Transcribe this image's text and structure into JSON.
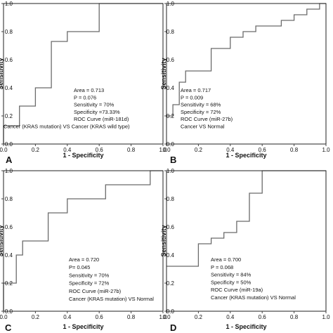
{
  "colors": {
    "curve": "#6b6b6b",
    "frame": "#222222",
    "tick_marks": "#444444",
    "background": "#ffffff"
  },
  "chart_data": [
    {
      "type": "line",
      "panel_label": "A",
      "xlabel": "1 - Specificity",
      "ylabel": "Sensitivity",
      "xlim": [
        0,
        1.0
      ],
      "ylim": [
        0,
        1.0
      ],
      "x_ticks": [
        "0.0",
        "0.2",
        "0.4",
        "0.6",
        "0.8",
        "1.0"
      ],
      "y_ticks": [
        "0.0",
        "0.2",
        "0.4",
        "0.6",
        "0.8",
        "1.0"
      ],
      "grid": false,
      "series": [
        {
          "x": [
            0,
            0,
            0.1,
            0.1,
            0.2,
            0.2,
            0.3,
            0.3,
            0.4,
            0.4,
            0.6,
            0.6,
            1.0
          ],
          "y": [
            0,
            0.13,
            0.13,
            0.27,
            0.27,
            0.4,
            0.4,
            0.73,
            0.73,
            0.8,
            0.8,
            1.0,
            1.0
          ]
        }
      ],
      "annotations": [
        "Area = 0.713",
        "P = 0.076",
        "Sensitivity = 70%",
        "Specificity =73.33%",
        "ROC Curve (miR-181d)",
        "Cancer (KRAS mutation) VS Cancer (KRAS wild type)"
      ]
    },
    {
      "type": "line",
      "panel_label": "B",
      "xlabel": "1 - Specificity",
      "ylabel": "Sensitivity",
      "xlim": [
        0,
        1.0
      ],
      "ylim": [
        0,
        1.0
      ],
      "x_ticks": [
        "0.0",
        "0.2",
        "0.4",
        "0.6",
        "0.8",
        "1.0"
      ],
      "y_ticks": [
        "0.0",
        "0.2",
        "0.4",
        "0.6",
        "0.8",
        "1.0"
      ],
      "grid": false,
      "series": [
        {
          "x": [
            0,
            0.04,
            0.04,
            0.08,
            0.08,
            0.12,
            0.12,
            0.28,
            0.28,
            0.4,
            0.4,
            0.48,
            0.48,
            0.56,
            0.56,
            0.72,
            0.72,
            0.8,
            0.8,
            0.88,
            0.88,
            0.96,
            0.96,
            1.0
          ],
          "y": [
            0.2,
            0.2,
            0.28,
            0.28,
            0.44,
            0.44,
            0.52,
            0.52,
            0.68,
            0.68,
            0.76,
            0.76,
            0.8,
            0.8,
            0.84,
            0.84,
            0.88,
            0.88,
            0.92,
            0.92,
            0.96,
            0.96,
            1.0,
            1.0
          ]
        }
      ],
      "annotations": [
        "Area = 0.717",
        "P = 0.009",
        "Sensitivity = 68%",
        "Specificity = 72%",
        "ROC Curve (miR-27b)",
        "Cancer VS Normal"
      ]
    },
    {
      "type": "line",
      "panel_label": "C",
      "xlabel": "1 - Specificity",
      "ylabel": "Sensitivity",
      "xlim": [
        0,
        1.0
      ],
      "ylim": [
        0,
        1.0
      ],
      "x_ticks": [
        "0.0",
        "0.2",
        "0.4",
        "0.6",
        "0.8",
        "1.0"
      ],
      "y_ticks": [
        "0.0",
        "0.2",
        "0.4",
        "0.6",
        "0.8",
        "1.0"
      ],
      "grid": false,
      "series": [
        {
          "x": [
            0,
            0,
            0.08,
            0.08,
            0.12,
            0.12,
            0.28,
            0.28,
            0.4,
            0.4,
            0.64,
            0.64,
            0.92,
            0.92,
            1.0
          ],
          "y": [
            0,
            0.2,
            0.2,
            0.4,
            0.4,
            0.5,
            0.5,
            0.7,
            0.7,
            0.8,
            0.8,
            0.9,
            0.9,
            1.0,
            1.0
          ]
        }
      ],
      "annotations": [
        "Area = 0.720",
        "P= 0.045",
        "Sensitivity = 70%",
        "Specificity = 72%",
        "ROC Curve (miR-27b)",
        "Cancer (KRAS mutation) VS Normal"
      ]
    },
    {
      "type": "line",
      "panel_label": "D",
      "xlabel": "1 - Specificity",
      "ylabel": "Sensitivity",
      "xlim": [
        0,
        1.0
      ],
      "ylim": [
        0,
        1.0
      ],
      "x_ticks": [
        "0.0",
        "0.2",
        "0.4",
        "0.6",
        "0.8",
        "1.0"
      ],
      "y_ticks": [
        "0.0",
        "0.2",
        "0.4",
        "0.6",
        "0.8",
        "1.0"
      ],
      "grid": false,
      "series": [
        {
          "x": [
            0,
            0.2,
            0.2,
            0.28,
            0.28,
            0.36,
            0.36,
            0.44,
            0.44,
            0.52,
            0.52,
            0.6,
            0.6,
            1.0
          ],
          "y": [
            0.32,
            0.32,
            0.48,
            0.48,
            0.52,
            0.52,
            0.56,
            0.56,
            0.64,
            0.64,
            0.84,
            0.84,
            1.0,
            1.0
          ]
        }
      ],
      "annotations": [
        "Area = 0.700",
        "P = 0.068",
        "Sensitivity = 84%",
        "Specificity = 50%",
        "ROC Curve (miR-19a)",
        "Cancer (KRAS mutation) VS Normal"
      ]
    }
  ]
}
